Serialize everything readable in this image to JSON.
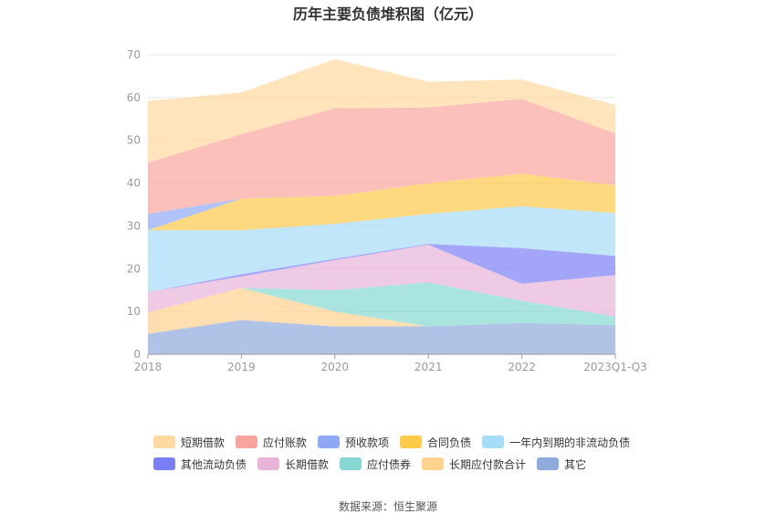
{
  "chart_data": {
    "type": "area",
    "title": "历年主要负债堆积图（亿元）",
    "categories": [
      "2018",
      "2019",
      "2020",
      "2021",
      "2022",
      "2023Q1-Q3"
    ],
    "ylim": [
      0,
      70
    ],
    "yticks": [
      0,
      10,
      20,
      30,
      40,
      50,
      60,
      70
    ],
    "stacked": true,
    "grid": true,
    "legend_position": "bottom",
    "series": [
      {
        "name": "其它",
        "color": "#8faadc",
        "values": [
          4.8,
          8.0,
          6.5,
          6.5,
          7.3,
          6.8
        ]
      },
      {
        "name": "长期应付款合计",
        "color": "#ffd28f",
        "values": [
          5.0,
          7.5,
          3.5,
          0.0,
          0.0,
          0.0
        ]
      },
      {
        "name": "应付债券",
        "color": "#86d8d2",
        "values": [
          0.0,
          0.0,
          5.0,
          10.3,
          5.2,
          2.0
        ]
      },
      {
        "name": "长期借款",
        "color": "#e8b4d8",
        "values": [
          4.7,
          2.7,
          7.0,
          8.8,
          4.0,
          9.7
        ]
      },
      {
        "name": "其他流动负债",
        "color": "#7b7ff5",
        "values": [
          0.0,
          0.5,
          0.3,
          0.2,
          8.3,
          4.5
        ]
      },
      {
        "name": "一年内到期的非流动负债",
        "color": "#a6dcf8",
        "values": [
          14.5,
          10.3,
          8.2,
          7.0,
          9.8,
          10.0
        ]
      },
      {
        "name": "合同负债",
        "color": "#ffc94a",
        "values": [
          0.0,
          7.4,
          6.5,
          7.2,
          7.6,
          6.5
        ]
      },
      {
        "name": "预收款项",
        "color": "#8fa9f5",
        "values": [
          3.8,
          0.0,
          0.0,
          0.0,
          0.0,
          0.0
        ]
      },
      {
        "name": "应付账款",
        "color": "#f9a59d",
        "values": [
          12.0,
          15.0,
          20.5,
          17.7,
          17.5,
          12.1
        ]
      },
      {
        "name": "短期借款",
        "color": "#ffd9a0",
        "values": [
          14.4,
          9.8,
          11.5,
          6.0,
          4.5,
          6.7
        ]
      }
    ],
    "legend_order": [
      "短期借款",
      "应付账款",
      "预收款项",
      "合同负债",
      "一年内到期的非流动负债",
      "其他流动负债",
      "长期借款",
      "应付债券",
      "长期应付款合计",
      "其它"
    ],
    "source": "数据来源：恒生聚源"
  }
}
